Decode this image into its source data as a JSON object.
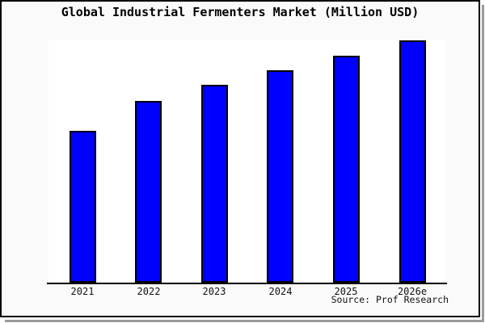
{
  "chart_data": {
    "type": "bar",
    "title": "Global Industrial Fermenters Market (Million USD)",
    "categories": [
      "2021",
      "2022",
      "2023",
      "2024",
      "2025",
      "2026e"
    ],
    "values": [
      62.7,
      75,
      81.7,
      87.7,
      93.7,
      100
    ],
    "values_note": "No y-axis or data labels are shown; values are relative bar heights estimated from pixels, tallest bar (2026e) = 100",
    "xlabel": "",
    "ylabel": "",
    "ylim": [
      0,
      100
    ],
    "grid": false,
    "legend": "none",
    "annotation": "Source: Prof Research",
    "bar_color": "#0000ff",
    "bar_edge_color": "#000000",
    "plot_background": "#ffffff",
    "canvas_background": "#fafafa"
  }
}
